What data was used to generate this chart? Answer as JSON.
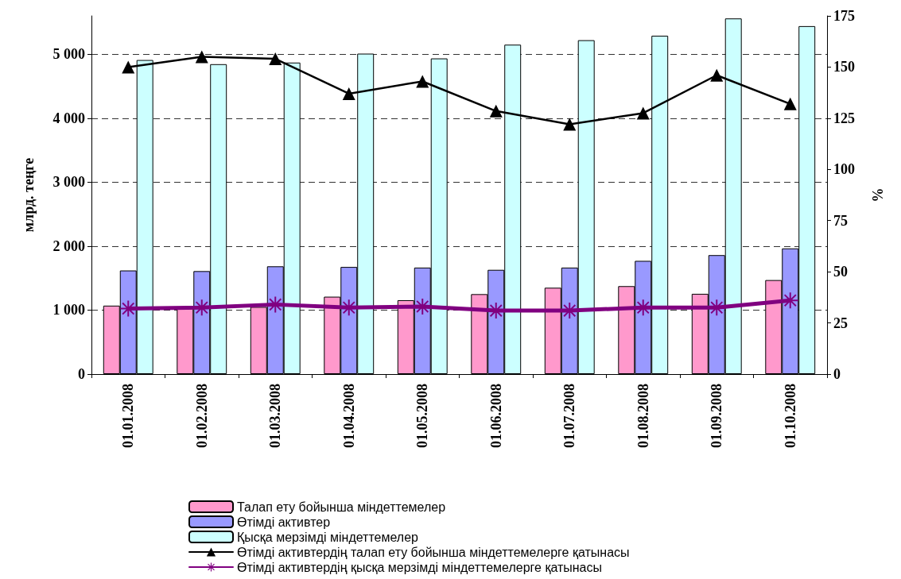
{
  "chart_data": {
    "type": "bar",
    "ylabel": "млрд. теңге",
    "y2label": "%",
    "categories": [
      "01.01.2008",
      "01.02.2008",
      "01.03.2008",
      "01.04.2008",
      "01.05.2008",
      "01.06.2008",
      "01.07.2008",
      "01.08.2008",
      "01.09.2008",
      "01.10.2008"
    ],
    "series": [
      {
        "name": "Талап ету бойынша міндеттемелер",
        "color": "#ff99cc",
        "values": [
          1070,
          1050,
          1050,
          1210,
          1155,
          1250,
          1350,
          1375,
          1255,
          1470
        ]
      },
      {
        "name": "Өтімді активтер",
        "color": "#9999ff",
        "values": [
          1620,
          1610,
          1685,
          1675,
          1665,
          1630,
          1665,
          1770,
          1860,
          1965
        ]
      },
      {
        "name": "Қысқа мерзімді міндеттемелер",
        "color": "#ccffff",
        "values": [
          4910,
          4845,
          4870,
          5010,
          4935,
          5150,
          5220,
          5290,
          5560,
          5440
        ]
      },
      {
        "name": "Өтімді активтердің талап ету бойынша міндеттемелерге қатынасы",
        "type": "line",
        "axis": "y2",
        "color": "#000000",
        "marker": "triangle",
        "values": [
          150,
          155,
          154,
          137,
          143,
          128.5,
          122,
          127.5,
          146,
          132
        ]
      },
      {
        "name": "Өтімді активтердің қысқа мерзімді міндеттемелерге қатынасы",
        "type": "line",
        "axis": "y2",
        "color": "#800080",
        "marker": "star",
        "values": [
          32,
          32.5,
          34,
          32.5,
          33,
          31,
          31,
          32.5,
          32.5,
          36
        ]
      }
    ],
    "ylim": [
      0,
      5600
    ],
    "yticks": [
      0,
      1000,
      2000,
      3000,
      4000,
      5000
    ],
    "y2lim": [
      0,
      175
    ],
    "y2ticks": [
      0,
      25,
      50,
      75,
      100,
      125,
      150,
      175
    ],
    "grid": "y",
    "legend": "bottom",
    "line_style": "solid"
  }
}
